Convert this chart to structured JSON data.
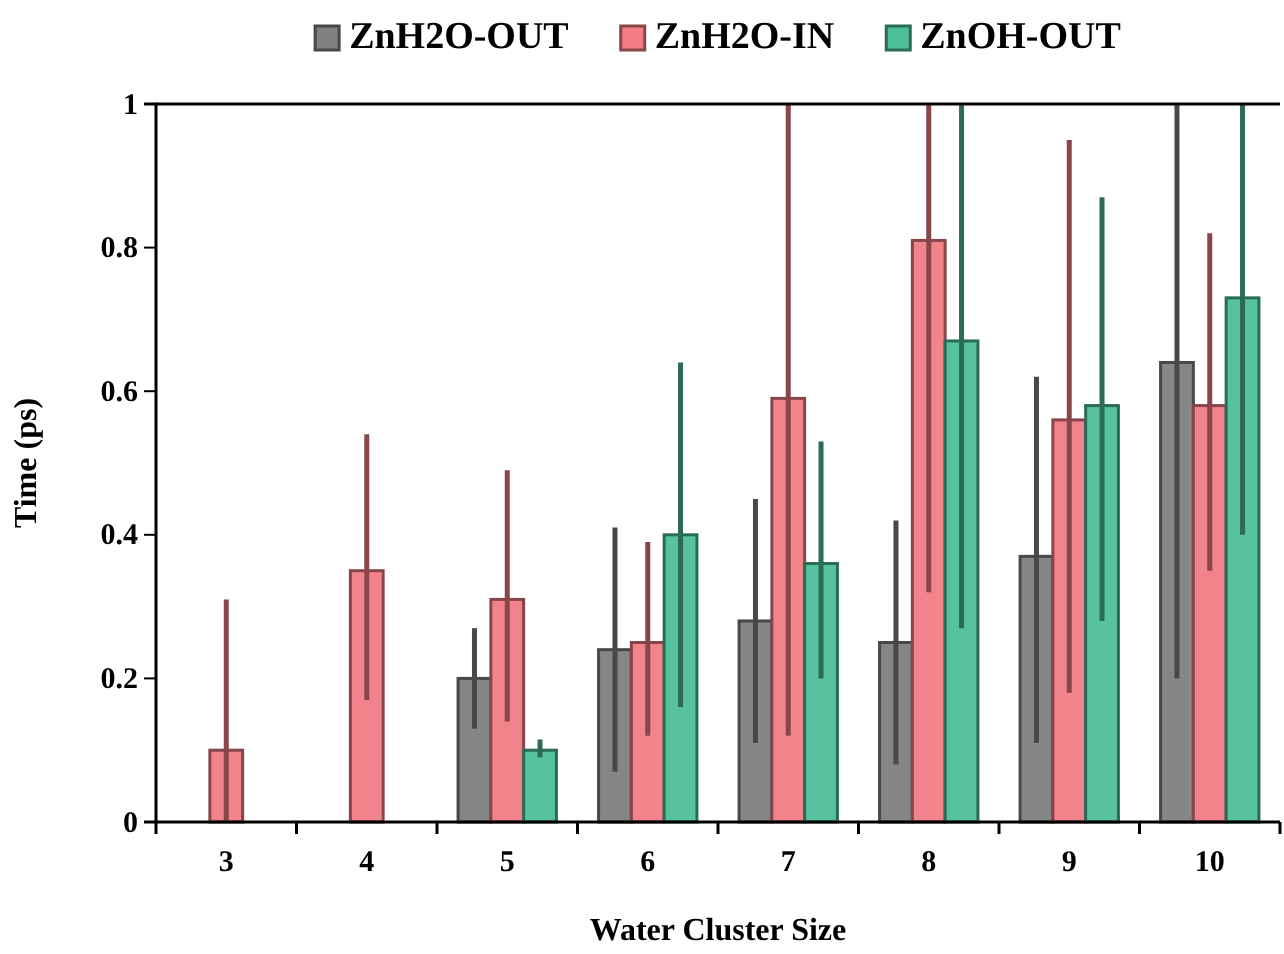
{
  "chart_data": {
    "type": "bar",
    "xlabel": "Water Cluster Size",
    "ylabel": "Time (ps)",
    "categories": [
      "3",
      "4",
      "5",
      "6",
      "7",
      "8",
      "9",
      "10"
    ],
    "series": [
      {
        "name": "ZnH2O-OUT",
        "color": "#808080",
        "values": [
          null,
          null,
          0.2,
          0.24,
          0.28,
          0.25,
          0.37,
          0.64
        ],
        "errors": [
          null,
          null,
          [
            0.13,
            0.27
          ],
          [
            0.07,
            0.41
          ],
          [
            0.11,
            0.45
          ],
          [
            0.08,
            0.42
          ],
          [
            0.11,
            0.62
          ],
          [
            0.2,
            1.0
          ]
        ]
      },
      {
        "name": "ZnH2O-IN",
        "color": "#f07c84",
        "values": [
          0.1,
          0.35,
          0.31,
          0.25,
          0.59,
          0.81,
          0.56,
          0.58
        ],
        "errors": [
          [
            0,
            0.31
          ],
          [
            0.17,
            0.54
          ],
          [
            0.14,
            0.49
          ],
          [
            0.12,
            0.39
          ],
          [
            0.12,
            1.0
          ],
          [
            0.32,
            1.0
          ],
          [
            0.18,
            0.95
          ],
          [
            0.35,
            0.82
          ]
        ]
      },
      {
        "name": "ZnOH-OUT",
        "color": "#4dbf99",
        "values": [
          null,
          null,
          0.1,
          0.4,
          0.36,
          0.67,
          0.58,
          0.73
        ],
        "errors": [
          null,
          null,
          [
            0.09,
            0.115
          ],
          [
            0.16,
            0.64
          ],
          [
            0.2,
            0.53
          ],
          [
            0.27,
            1.0
          ],
          [
            0.28,
            0.87
          ],
          [
            0.4,
            1.0
          ]
        ]
      }
    ],
    "ylim": [
      0,
      1
    ],
    "yticks": [
      0,
      0.2,
      0.4,
      0.6,
      0.8,
      1
    ],
    "grid": false,
    "legend": "top"
  }
}
